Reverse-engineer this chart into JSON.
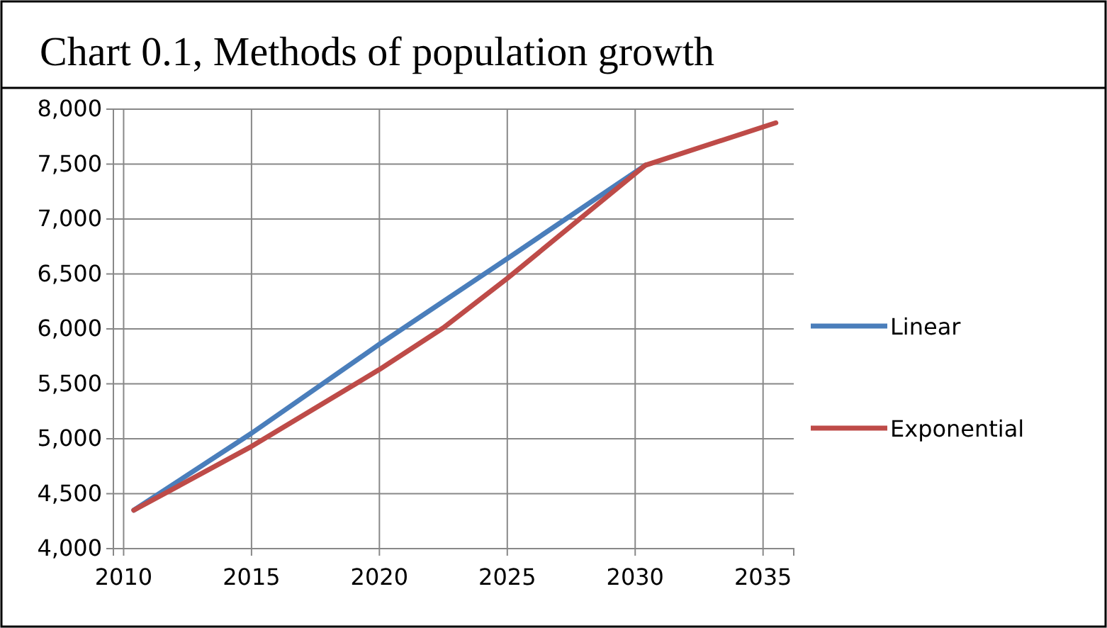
{
  "chart_data": {
    "type": "line",
    "title": "Chart 0.1, Methods of population growth",
    "series": [
      {
        "name": "Linear",
        "color": "#4a7ebb",
        "x": [
          2010.4,
          2015,
          2020,
          2025,
          2030.4
        ],
        "values": [
          4350,
          5050,
          5860,
          6640,
          7490
        ]
      },
      {
        "name": "Exponential",
        "color": "#be4b48",
        "x": [
          2010.4,
          2015,
          2020,
          2022.5,
          2025,
          2030.4,
          2035.5
        ],
        "values": [
          4350,
          4930,
          5630,
          6010,
          6460,
          7490,
          7876
        ]
      }
    ],
    "xlim": [
      2009.6,
      2036.2
    ],
    "xticks": [
      2010,
      2015,
      2020,
      2025,
      2030,
      2035
    ],
    "ylim": [
      4000,
      8000
    ],
    "yticks": [
      {
        "value": 4000,
        "label": "4,000"
      },
      {
        "value": 4500,
        "label": "4,500"
      },
      {
        "value": 5000,
        "label": "5,000"
      },
      {
        "value": 5500,
        "label": "5,500"
      },
      {
        "value": 6000,
        "label": "6,000"
      },
      {
        "value": 6500,
        "label": "6,500"
      },
      {
        "value": 7000,
        "label": "7,000"
      },
      {
        "value": 7500,
        "label": "7,500"
      },
      {
        "value": 8000,
        "label": "8,000"
      }
    ],
    "grid": true,
    "legend": "right",
    "line_style": "solid",
    "marker": "none"
  }
}
